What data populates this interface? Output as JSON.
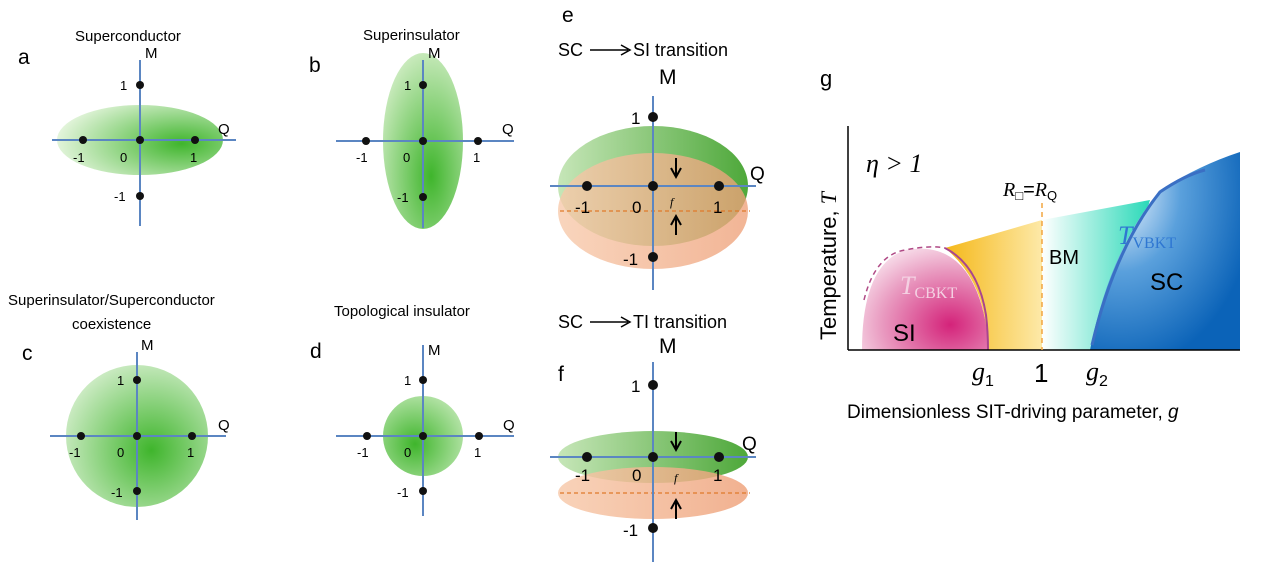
{
  "colors": {
    "axis": "#5b86c2",
    "green": "#46b832",
    "green_light": "#cbecc0",
    "orange": "#f0a882",
    "dashed_orange": "#e07a2a",
    "si_pink": "#d63a86",
    "sc_blue": "#0e6ac0",
    "bm_teal": "#2ad9b8",
    "orange_band": "#f5b818"
  },
  "panels": {
    "a": {
      "letter": "a",
      "title": "Superconductor",
      "m": "M",
      "q": "Q",
      "t1": "1",
      "tm1": "-1",
      "t0": "0",
      "r1": "1",
      "rm1": "-1"
    },
    "b": {
      "letter": "b",
      "title": "Superinsulator",
      "m": "M",
      "q": "Q",
      "t1": "1",
      "tm1": "-1",
      "t0": "0",
      "r1": "1",
      "rm1": "-1"
    },
    "c": {
      "letter": "c",
      "title_line1": "Superinsulator/Superconductor",
      "title_line2": "coexistence",
      "m": "M",
      "q": "Q",
      "t1": "1",
      "tm1": "-1",
      "t0": "0",
      "r1": "1",
      "rm1": "-1"
    },
    "d": {
      "letter": "d",
      "title": "Topological insulator",
      "m": "M",
      "q": "Q",
      "t1": "1",
      "tm1": "-1",
      "t0": "0",
      "r1": "1",
      "rm1": "-1"
    },
    "e": {
      "letter": "e",
      "title_sc": "SC",
      "title_rest": "SI transition",
      "m": "M",
      "q": "Q",
      "t1": "1",
      "tm1": "-1",
      "t0": "0",
      "r1": "1",
      "rm1": "-1",
      "f": "f"
    },
    "f": {
      "letter": "f",
      "title_sc": "SC",
      "title_rest": "TI transition",
      "m": "M",
      "q": "Q",
      "t1": "1",
      "tm1": "-1",
      "t0": "0",
      "r1": "1",
      "rm1": "-1",
      "f": "f"
    },
    "g": {
      "letter": "g",
      "eta": "η > 1",
      "ylabel": "Temperature, ",
      "ylabel_var": "T",
      "xlabel": "Dimensionless SIT-driving parameter, ",
      "xlabel_var": "g",
      "r_box": "R",
      "r_box_sub": "□",
      "r_eq": "=",
      "r_q": "R",
      "r_q_sub": "Q",
      "t_cbkt": "T",
      "t_cbkt_sub": "CBKT",
      "t_vbkt": "T",
      "t_vbkt_sub": "VBKT",
      "si": "SI",
      "sc": "SC",
      "bm": "BM",
      "g1": "g",
      "g1_sub": "1",
      "one": "1",
      "g2": "g",
      "g2_sub": "2"
    }
  }
}
